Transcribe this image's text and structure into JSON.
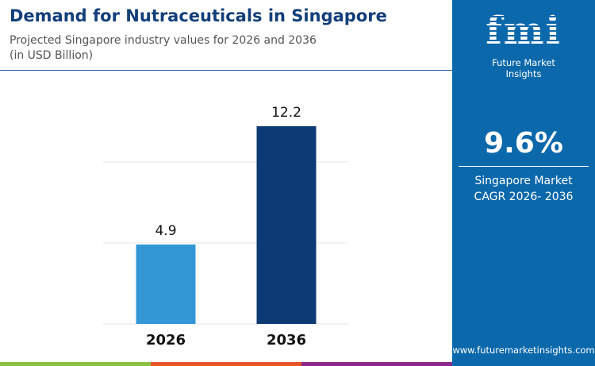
{
  "header": {
    "title": "Demand for Nutraceuticals in Singapore",
    "subtitle_line1": "Projected Singapore industry values for 2026 and 2036",
    "subtitle_line2": "(in USD Billion)"
  },
  "sidebar": {
    "brand": "Future Market Insights",
    "logo_text": "fmi",
    "cagr_value": "9.6%",
    "cagr_label_line1": "Singapore Market",
    "cagr_label_line2": "CAGR 2026- 2036",
    "url": "www.futuremarketinsights.com"
  },
  "colors": {
    "bar_2026": "#3397d6",
    "bar_2036": "#0c3a74",
    "panel": "#0b68ab",
    "footer": [
      "#8cc043",
      "#e8572a",
      "#8a2a8c"
    ]
  },
  "chart_data": {
    "type": "bar",
    "categories": [
      "2026",
      "2036"
    ],
    "values": [
      4.9,
      12.2
    ],
    "data_labels": [
      "4.9",
      "12.2"
    ],
    "title": "Demand for Nutraceuticals in Singapore",
    "xlabel": "",
    "ylabel": "",
    "ylim": [
      0,
      12.2
    ],
    "grid": true,
    "gridlines": [
      0,
      5,
      10
    ]
  }
}
